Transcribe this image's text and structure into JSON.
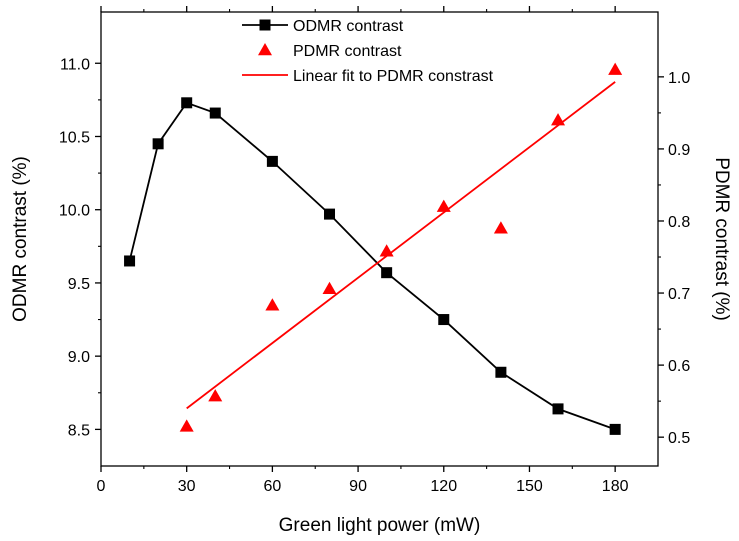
{
  "chart_data": {
    "type": "line",
    "title": "",
    "xlabel": "Green light power (mW)",
    "ylabel_left": "ODMR contrast (%)",
    "ylabel_right": "PDMR contrast (%)",
    "xlim": [
      0,
      195
    ],
    "ylim_left": [
      8.25,
      11.35
    ],
    "ylim_right": [
      0.46,
      1.09
    ],
    "x_ticks": [
      0,
      30,
      60,
      90,
      120,
      150,
      180
    ],
    "y_left_ticks": [
      8.5,
      9.0,
      9.5,
      10.0,
      10.5,
      11.0
    ],
    "y_right_ticks": [
      0.5,
      0.6,
      0.7,
      0.8,
      0.9,
      1.0
    ],
    "x_tick_labels": [
      "0",
      "30",
      "60",
      "90",
      "120",
      "150",
      "180"
    ],
    "y_left_tick_labels": [
      "8.5",
      "9.0",
      "9.5",
      "10.0",
      "10.5",
      "11.0"
    ],
    "y_right_tick_labels": [
      "0.5",
      "0.6",
      "0.7",
      "0.8",
      "0.9",
      "1.0"
    ],
    "legend_position": "top-center",
    "grid": false,
    "series": [
      {
        "name": "ODMR contrast",
        "axis": "left",
        "style": "line-square",
        "color": "#000000",
        "x": [
          10,
          20,
          30,
          40,
          60,
          80,
          100,
          120,
          140,
          160,
          180
        ],
        "y": [
          9.65,
          10.45,
          10.73,
          10.66,
          10.33,
          9.97,
          9.57,
          9.25,
          8.89,
          8.64,
          8.5
        ]
      },
      {
        "name": "PDMR contrast",
        "axis": "right",
        "style": "triangle",
        "color": "#ff0000",
        "x": [
          30,
          40,
          60,
          80,
          100,
          120,
          140,
          160,
          180
        ],
        "y": [
          0.515,
          0.557,
          0.683,
          0.706,
          0.758,
          0.82,
          0.79,
          0.94,
          1.01
        ]
      },
      {
        "name": "Linear fit to PDMR constrast",
        "axis": "right",
        "style": "line",
        "color": "#ff0000",
        "x": [
          30,
          180
        ],
        "y": [
          0.54,
          0.993
        ]
      }
    ]
  }
}
